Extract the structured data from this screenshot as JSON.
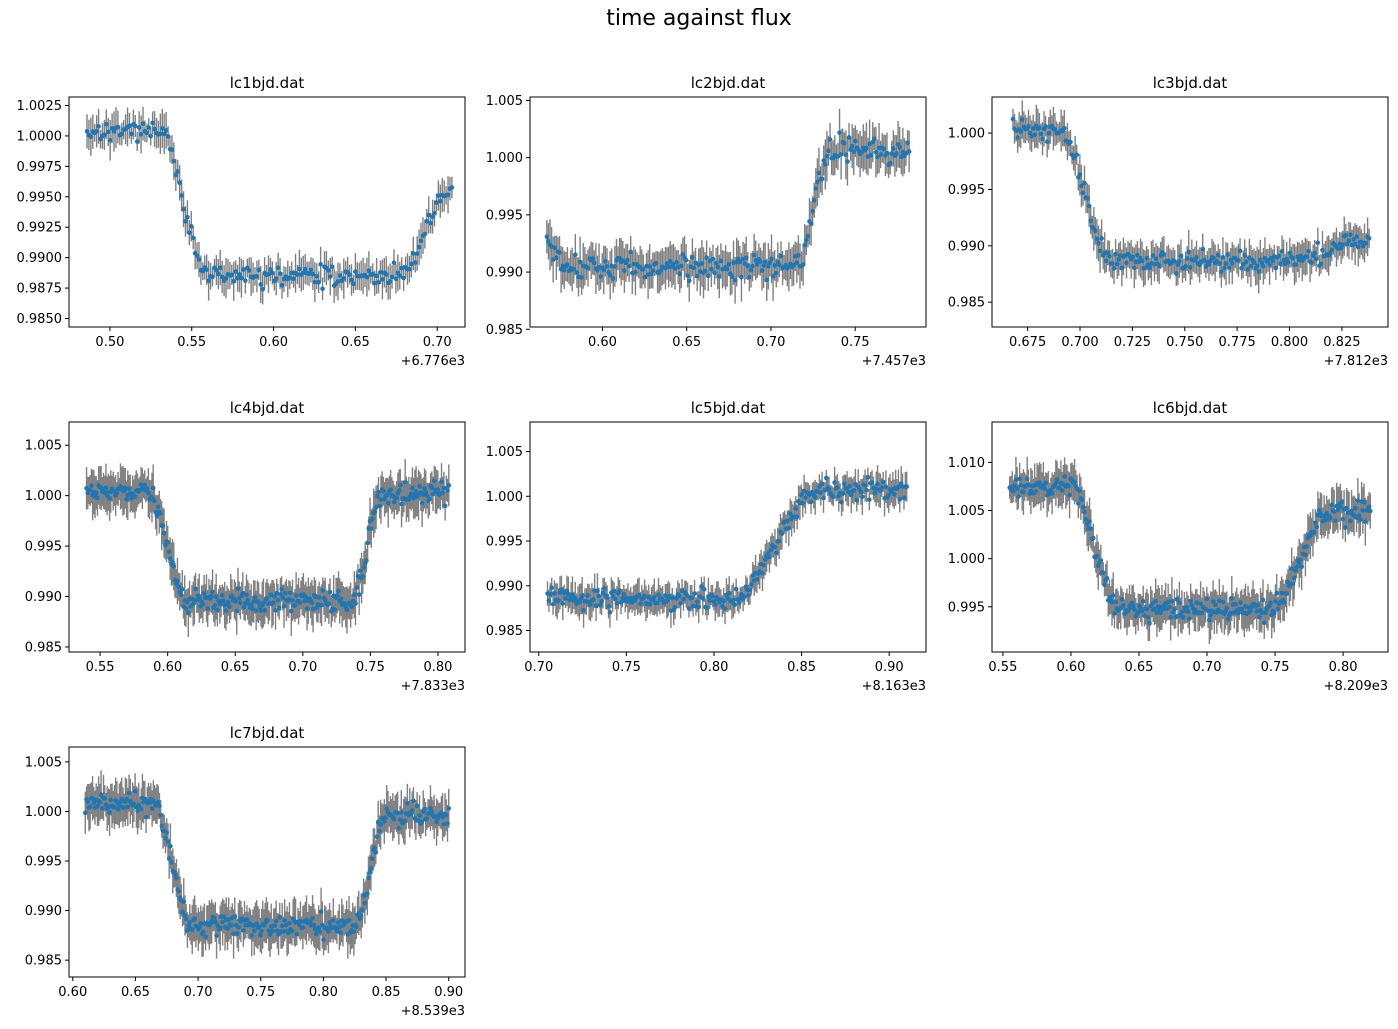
{
  "figure": {
    "suptitle": "time against flux"
  },
  "chart_data": [
    {
      "type": "scatter",
      "title": "lc1bjd.dat",
      "x_offset_label": "+6.776e3",
      "xlim": [
        0.475,
        0.717
      ],
      "ylim": [
        0.9843,
        1.0032
      ],
      "xticks": [
        0.5,
        0.55,
        0.6,
        0.65,
        0.7
      ],
      "xtick_labels": [
        "0.50",
        "0.55",
        "0.60",
        "0.65",
        "0.70"
      ],
      "yticks": [
        0.985,
        0.9875,
        0.99,
        0.9925,
        0.995,
        0.9975,
        1.0,
        1.0025
      ],
      "ytick_labels": [
        "0.9850",
        "0.9875",
        "0.9900",
        "0.9925",
        "0.9950",
        "0.9975",
        "1.0000",
        "1.0025"
      ],
      "x_range": [
        0.486,
        0.709
      ],
      "ingress": [
        0.53,
        0.56
      ],
      "egress": [
        0.675,
        0.709
      ],
      "baseline": 1.0005,
      "floor": 0.9885,
      "egress_end": 0.9955,
      "noise": 0.0008,
      "errbar": 0.0012,
      "n_points": 190
    },
    {
      "type": "scatter",
      "title": "lc2bjd.dat",
      "x_offset_label": "+7.457e3",
      "xlim": [
        0.557,
        0.792
      ],
      "ylim": [
        0.9852,
        1.0053
      ],
      "xticks": [
        0.6,
        0.65,
        0.7,
        0.75
      ],
      "xtick_labels": [
        "0.60",
        "0.65",
        "0.70",
        "0.75"
      ],
      "yticks": [
        0.985,
        0.99,
        0.995,
        1.0,
        1.005
      ],
      "ytick_labels": [
        "0.985",
        "0.990",
        "0.995",
        "1.000",
        "1.005"
      ],
      "x_range": [
        0.567,
        0.782
      ],
      "ingress": [
        0.56,
        0.575
      ],
      "egress": [
        0.715,
        0.735
      ],
      "baseline": 0.997,
      "floor": 0.9905,
      "egress_end": 1.0005,
      "noise": 0.0012,
      "errbar": 0.0016,
      "n_points": 230
    },
    {
      "type": "scatter",
      "title": "lc3bjd.dat",
      "x_offset_label": "+7.812e3",
      "xlim": [
        0.658,
        0.847
      ],
      "ylim": [
        0.9828,
        1.0032
      ],
      "xticks": [
        0.675,
        0.7,
        0.725,
        0.75,
        0.775,
        0.8,
        0.825
      ],
      "xtick_labels": [
        "0.675",
        "0.700",
        "0.725",
        "0.750",
        "0.775",
        "0.800",
        "0.825"
      ],
      "yticks": [
        0.985,
        0.99,
        0.995,
        1.0
      ],
      "ytick_labels": [
        "0.985",
        "0.990",
        "0.995",
        "1.000"
      ],
      "x_range": [
        0.668,
        0.838
      ],
      "ingress": [
        0.69,
        0.715
      ],
      "egress": [
        0.8,
        0.838
      ],
      "baseline": 1.0003,
      "floor": 0.9887,
      "egress_end": 0.9905,
      "noise": 0.0009,
      "errbar": 0.0014,
      "n_points": 230
    },
    {
      "type": "scatter",
      "title": "lc4bjd.dat",
      "x_offset_label": "+7.833e3",
      "xlim": [
        0.527,
        0.82
      ],
      "ylim": [
        0.9845,
        1.0073
      ],
      "xticks": [
        0.55,
        0.6,
        0.65,
        0.7,
        0.75,
        0.8
      ],
      "xtick_labels": [
        "0.55",
        "0.60",
        "0.65",
        "0.70",
        "0.75",
        "0.80"
      ],
      "yticks": [
        0.985,
        0.99,
        0.995,
        1.0,
        1.005
      ],
      "ytick_labels": [
        "0.985",
        "0.990",
        "0.995",
        "1.000",
        "1.005"
      ],
      "x_range": [
        0.54,
        0.808
      ],
      "ingress": [
        0.585,
        0.615
      ],
      "egress": [
        0.735,
        0.76
      ],
      "baseline": 1.0003,
      "floor": 0.9895,
      "egress_end": 1.0003,
      "noise": 0.0011,
      "errbar": 0.0018,
      "n_points": 300
    },
    {
      "type": "scatter",
      "title": "lc5bjd.dat",
      "x_offset_label": "+8.163e3",
      "xlim": [
        0.695,
        0.921
      ],
      "ylim": [
        0.9826,
        1.0083
      ],
      "xticks": [
        0.7,
        0.75,
        0.8,
        0.85,
        0.9
      ],
      "xtick_labels": [
        "0.70",
        "0.75",
        "0.80",
        "0.85",
        "0.90"
      ],
      "yticks": [
        0.985,
        0.99,
        0.995,
        1.0,
        1.005
      ],
      "ytick_labels": [
        "0.985",
        "0.990",
        "0.995",
        "1.000",
        "1.005"
      ],
      "x_range": [
        0.705,
        0.91
      ],
      "ingress": [
        0.65,
        0.69
      ],
      "egress": [
        0.81,
        0.86
      ],
      "baseline": 0.99,
      "floor": 0.9885,
      "egress_end": 1.0007,
      "noise": 0.0011,
      "errbar": 0.0015,
      "n_points": 260
    },
    {
      "type": "scatter",
      "title": "lc6bjd.dat",
      "x_offset_label": "+8.209e3",
      "xlim": [
        0.542,
        0.833
      ],
      "ylim": [
        0.9903,
        1.0142
      ],
      "xticks": [
        0.55,
        0.6,
        0.65,
        0.7,
        0.75,
        0.8
      ],
      "xtick_labels": [
        "0.55",
        "0.60",
        "0.65",
        "0.70",
        "0.75",
        "0.80"
      ],
      "yticks": [
        0.995,
        1.0,
        1.005,
        1.01
      ],
      "ytick_labels": [
        "0.995",
        "1.000",
        "1.005",
        "1.010"
      ],
      "x_range": [
        0.555,
        0.82
      ],
      "ingress": [
        0.6,
        0.635
      ],
      "egress": [
        0.745,
        0.79
      ],
      "baseline": 1.0075,
      "floor": 0.9948,
      "egress_end": 1.005,
      "noise": 0.0012,
      "errbar": 0.0018,
      "n_points": 290
    },
    {
      "type": "scatter",
      "title": "lc7bjd.dat",
      "x_offset_label": "+8.539e3",
      "xlim": [
        0.597,
        0.913
      ],
      "ylim": [
        0.9833,
        1.0065
      ],
      "xticks": [
        0.6,
        0.65,
        0.7,
        0.75,
        0.8,
        0.85,
        0.9
      ],
      "xtick_labels": [
        "0.60",
        "0.65",
        "0.70",
        "0.75",
        "0.80",
        "0.85",
        "0.90"
      ],
      "yticks": [
        0.985,
        0.99,
        0.995,
        1.0,
        1.005
      ],
      "ytick_labels": [
        "0.985",
        "0.990",
        "0.995",
        "1.000",
        "1.005"
      ],
      "x_range": [
        0.61,
        0.9
      ],
      "ingress": [
        0.665,
        0.695
      ],
      "egress": [
        0.825,
        0.85
      ],
      "baseline": 1.0007,
      "floor": 0.9885,
      "egress_end": 0.9995,
      "noise": 0.0011,
      "errbar": 0.0018,
      "n_points": 300
    }
  ],
  "colors": {
    "marker": "#1f77b4",
    "errorbar": "#808080",
    "axes": "#000000"
  }
}
